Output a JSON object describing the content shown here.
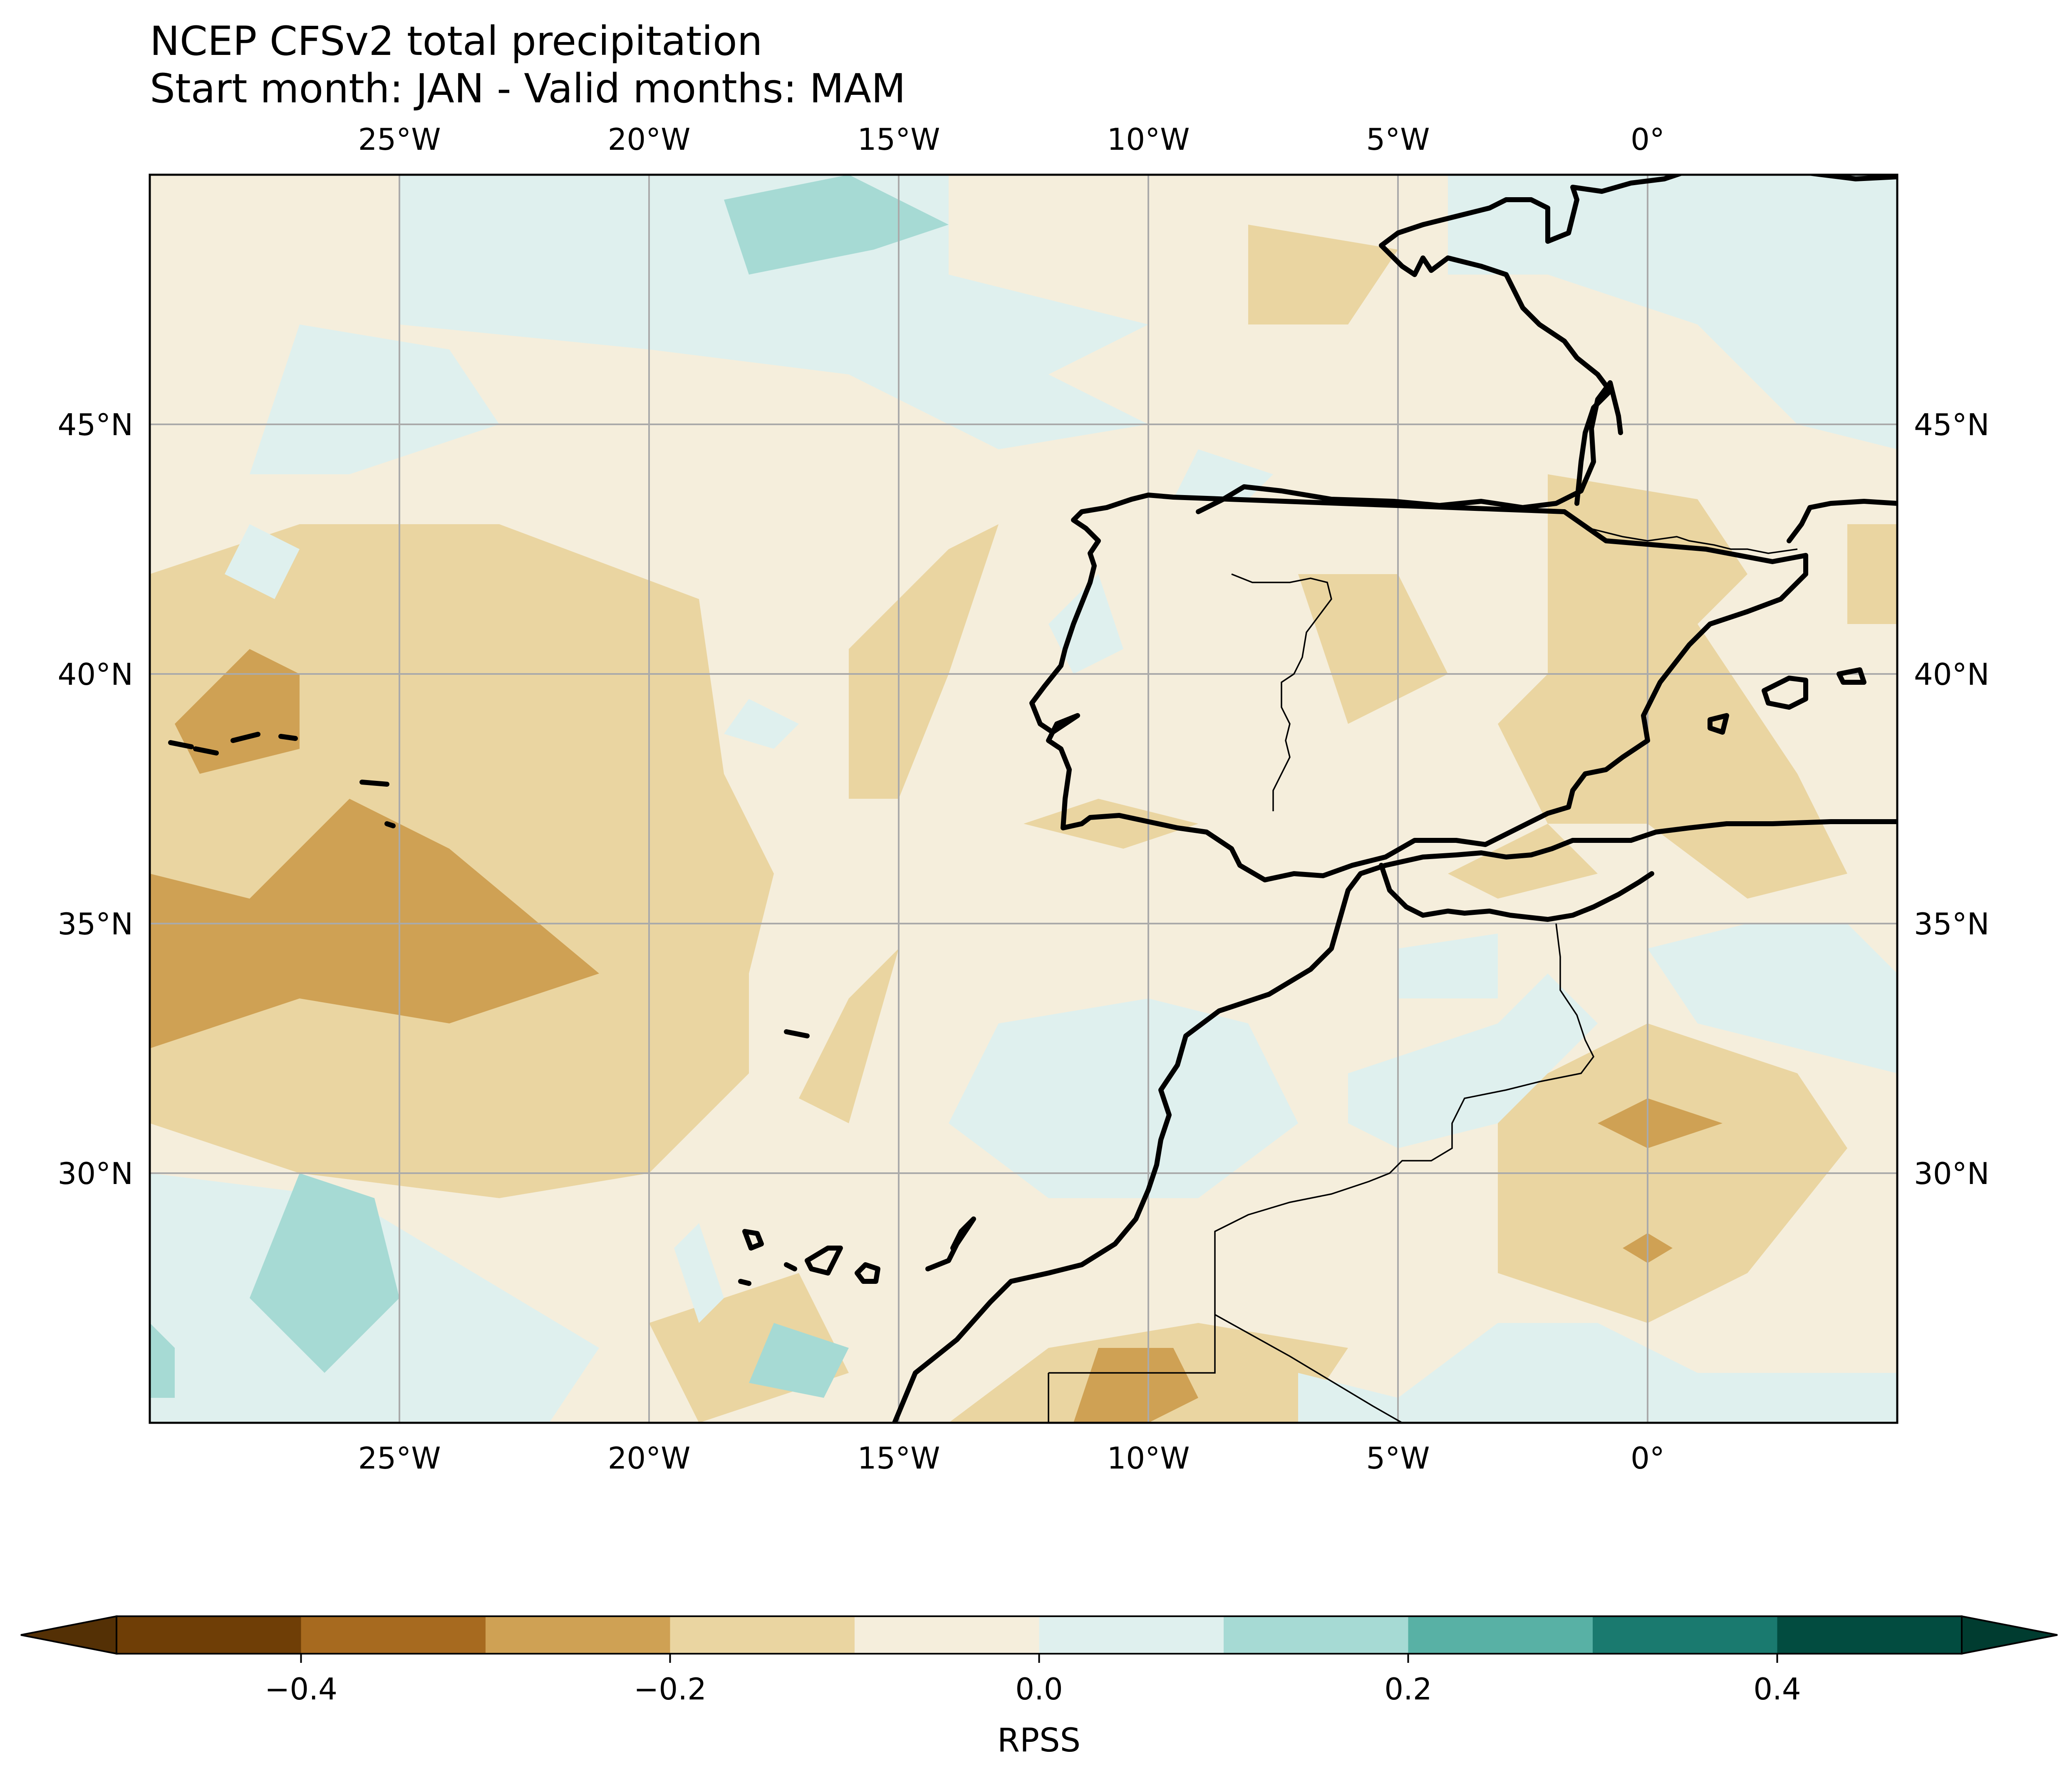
{
  "header": {
    "title_line1": "NCEP CFSv2 total precipitation",
    "title_line2": "Start month: JAN - Valid months: MAM"
  },
  "map": {
    "projection": "PlateCarree",
    "extent": {
      "lon_min": -30,
      "lon_max": 5,
      "lat_min": 25,
      "lat_max": 50
    },
    "lon_ticks": [
      {
        "value": -25,
        "label": "25°W"
      },
      {
        "value": -20,
        "label": "20°W"
      },
      {
        "value": -15,
        "label": "15°W"
      },
      {
        "value": -10,
        "label": "10°W"
      },
      {
        "value": -5,
        "label": "5°W"
      },
      {
        "value": 0,
        "label": "0°"
      }
    ],
    "lat_ticks": [
      {
        "value": 45,
        "label": "45°N"
      },
      {
        "value": 40,
        "label": "40°N"
      },
      {
        "value": 35,
        "label": "35°N"
      },
      {
        "value": 30,
        "label": "30°N"
      }
    ],
    "gridlines": true,
    "gridline_color": "#aaaaaa",
    "coastline_color": "#000000",
    "background_class_color": "#f5eedc",
    "skill_regions": [
      {
        "level": "-0.2 to -0.1",
        "color": "#ead5a1",
        "polygons": [
          [
            [
              -30,
              42
            ],
            [
              -27,
              43
            ],
            [
              -23,
              43
            ],
            [
              -19,
              41.5
            ],
            [
              -18.5,
              38
            ],
            [
              -17.5,
              36
            ],
            [
              -18,
              34
            ],
            [
              -18,
              32
            ],
            [
              -20,
              30
            ],
            [
              -23,
              29.5
            ],
            [
              -27,
              30
            ],
            [
              -30,
              31
            ]
          ],
          [
            [
              -16,
              40.5
            ],
            [
              -14,
              42.5
            ],
            [
              -13,
              43
            ],
            [
              -14,
              40
            ],
            [
              -15,
              37.5
            ],
            [
              -16,
              37.5
            ]
          ],
          [
            [
              -16,
              33.5
            ],
            [
              -15,
              34.5
            ],
            [
              -16,
              31
            ],
            [
              -17,
              31.5
            ]
          ],
          [
            [
              -12.5,
              37
            ],
            [
              -11,
              37.5
            ],
            [
              -9,
              37
            ],
            [
              -10.5,
              36.5
            ]
          ],
          [
            [
              -7,
              42
            ],
            [
              -5,
              42
            ],
            [
              -4,
              40
            ],
            [
              -6,
              39
            ]
          ],
          [
            [
              -2,
              44
            ],
            [
              1,
              43.5
            ],
            [
              2,
              42
            ],
            [
              0,
              40
            ],
            [
              -2,
              40
            ]
          ],
          [
            [
              -3,
              39
            ],
            [
              -1,
              41
            ],
            [
              1,
              41
            ],
            [
              3,
              38
            ],
            [
              4,
              36
            ],
            [
              2,
              35.5
            ],
            [
              0,
              37
            ],
            [
              -2,
              37
            ]
          ],
          [
            [
              -4,
              36
            ],
            [
              -2,
              37
            ],
            [
              -1,
              36
            ],
            [
              -3,
              35.5
            ]
          ],
          [
            [
              -20,
              27
            ],
            [
              -17,
              28
            ],
            [
              -16,
              26
            ],
            [
              -19,
              25
            ]
          ],
          [
            [
              -14,
              25
            ],
            [
              -12,
              26.5
            ],
            [
              -9,
              27
            ],
            [
              -6,
              26.5
            ],
            [
              -7,
              25
            ]
          ],
          [
            [
              -3,
              31.5
            ],
            [
              0,
              33
            ],
            [
              3,
              32
            ],
            [
              4,
              30.5
            ],
            [
              2,
              28
            ],
            [
              0,
              27
            ],
            [
              -3,
              28
            ]
          ],
          [
            [
              -8,
              49
            ],
            [
              -5,
              48.5
            ],
            [
              -6,
              47
            ],
            [
              -8,
              47
            ]
          ],
          [
            [
              -4,
              50
            ],
            [
              -2,
              50
            ],
            [
              -2,
              48
            ],
            [
              -4,
              48
            ]
          ],
          [
            [
              2,
              48
            ],
            [
              4,
              48.5
            ],
            [
              5,
              47
            ],
            [
              3,
              46.5
            ]
          ],
          [
            [
              4,
              43
            ],
            [
              5,
              43
            ],
            [
              5,
              41
            ],
            [
              4,
              41
            ]
          ]
        ]
      },
      {
        "level": "-0.3 to -0.2",
        "color": "#cfa154",
        "polygons": [
          [
            [
              -29.5,
              39
            ],
            [
              -28,
              40.5
            ],
            [
              -27,
              40
            ],
            [
              -27,
              38.5
            ],
            [
              -29,
              38
            ]
          ],
          [
            [
              -30,
              36
            ],
            [
              -28,
              35.5
            ],
            [
              -26,
              37.5
            ],
            [
              -24,
              36.5
            ],
            [
              -21,
              34
            ],
            [
              -24,
              33
            ],
            [
              -27,
              33.5
            ],
            [
              -30,
              32.5
            ]
          ],
          [
            [
              -11.5,
              25
            ],
            [
              -11,
              26.5
            ],
            [
              -9.5,
              26.5
            ],
            [
              -9,
              25.5
            ],
            [
              -10,
              25
            ]
          ],
          [
            [
              -1,
              31
            ],
            [
              0,
              31.5
            ],
            [
              1.5,
              31
            ],
            [
              0,
              30.5
            ]
          ],
          [
            [
              -0.5,
              28.5
            ],
            [
              0,
              28.8
            ],
            [
              0.5,
              28.5
            ],
            [
              0,
              28.2
            ]
          ]
        ]
      },
      {
        "level": "0.0 to 0.1",
        "color": "#dff0ee",
        "polygons": [
          [
            [
              -25,
              50
            ],
            [
              -14,
              50
            ],
            [
              -14,
              48
            ],
            [
              -10,
              47
            ],
            [
              -12,
              46
            ],
            [
              -10,
              45
            ],
            [
              -13,
              44.5
            ],
            [
              -16,
              46
            ],
            [
              -20,
              46.5
            ],
            [
              -25,
              47
            ]
          ],
          [
            [
              -27,
              47
            ],
            [
              -24,
              46.5
            ],
            [
              -23,
              45
            ],
            [
              -26,
              44
            ],
            [
              -28,
              44
            ]
          ],
          [
            [
              -28,
              43
            ],
            [
              -27,
              42.5
            ],
            [
              -27.5,
              41.5
            ],
            [
              -28.5,
              42
            ]
          ],
          [
            [
              -9,
              44.5
            ],
            [
              -7.5,
              44
            ],
            [
              -8,
              43.5
            ],
            [
              -9.5,
              43.5
            ]
          ],
          [
            [
              -4,
              50
            ],
            [
              5,
              50
            ],
            [
              5,
              44.5
            ],
            [
              3,
              45
            ],
            [
              1,
              47
            ],
            [
              -2,
              48
            ],
            [
              -4,
              48
            ]
          ],
          [
            [
              -12,
              41
            ],
            [
              -11,
              42
            ],
            [
              -10.5,
              40.5
            ],
            [
              -11.5,
              40
            ]
          ],
          [
            [
              -18,
              39.5
            ],
            [
              -17,
              39
            ],
            [
              -17.5,
              38.5
            ],
            [
              -18.5,
              38.8
            ]
          ],
          [
            [
              -30,
              30
            ],
            [
              -26,
              29.5
            ],
            [
              -21,
              26.5
            ],
            [
              -22,
              25
            ],
            [
              -30,
              25
            ]
          ],
          [
            [
              -19.5,
              28.5
            ],
            [
              -19,
              29
            ],
            [
              -18.5,
              27.5
            ],
            [
              -19,
              27
            ]
          ],
          [
            [
              -13,
              33
            ],
            [
              -10,
              33.5
            ],
            [
              -8,
              33
            ],
            [
              -7,
              31
            ],
            [
              -9,
              29.5
            ],
            [
              -12,
              29.5
            ],
            [
              -14,
              31
            ]
          ],
          [
            [
              -6,
              32
            ],
            [
              -3,
              33
            ],
            [
              -2,
              34
            ],
            [
              -1,
              33
            ],
            [
              -3,
              31
            ],
            [
              -5,
              30.5
            ],
            [
              -6,
              31
            ]
          ],
          [
            [
              -5,
              34.5
            ],
            [
              -3,
              34.8
            ],
            [
              -3,
              33.5
            ],
            [
              -5,
              33.5
            ]
          ],
          [
            [
              0,
              34.5
            ],
            [
              2,
              35
            ],
            [
              4,
              35
            ],
            [
              5,
              34
            ],
            [
              5,
              32
            ],
            [
              3,
              32.5
            ],
            [
              1,
              33
            ]
          ],
          [
            [
              -7,
              26
            ],
            [
              -5,
              25.5
            ],
            [
              -3,
              27
            ],
            [
              -1,
              27
            ],
            [
              1,
              26
            ],
            [
              5,
              26
            ],
            [
              5,
              25
            ],
            [
              -7,
              25
            ]
          ]
        ]
      },
      {
        "level": "0.1 to 0.2",
        "color": "#a6dad4",
        "polygons": [
          [
            [
              -16,
              50
            ],
            [
              -14,
              49
            ],
            [
              -15.5,
              48.5
            ],
            [
              -18,
              48
            ],
            [
              -18.5,
              49.5
            ]
          ],
          [
            [
              -27,
              30
            ],
            [
              -25.5,
              29.5
            ],
            [
              -25,
              27.5
            ],
            [
              -26.5,
              26
            ],
            [
              -28,
              27.5
            ]
          ],
          [
            [
              -30,
              27
            ],
            [
              -29.5,
              26.5
            ],
            [
              -29.5,
              25.5
            ],
            [
              -30,
              25.5
            ]
          ],
          [
            [
              -17.5,
              27
            ],
            [
              -16,
              26.5
            ],
            [
              -16.5,
              25.5
            ],
            [
              -18,
              25.8
            ]
          ]
        ]
      }
    ],
    "borders_description": "coastlines and national borders of Iberia, France and NW Africa"
  },
  "colorbar": {
    "label": "RPSS",
    "extend": "both",
    "boundaries": [
      -0.5,
      -0.4,
      -0.3,
      -0.2,
      -0.1,
      0.0,
      0.1,
      0.2,
      0.3,
      0.4,
      0.5
    ],
    "colors": [
      "#6f3e06",
      "#a76a1f",
      "#cfa154",
      "#ead5a1",
      "#f5eedc",
      "#dff0ee",
      "#a6dad4",
      "#58b1a5",
      "#1a7a6f",
      "#024c40"
    ],
    "extend_low_color": "#543005",
    "extend_high_color": "#003c30",
    "ticks": [
      {
        "value": -0.4,
        "label": "−0.4"
      },
      {
        "value": -0.2,
        "label": "−0.2"
      },
      {
        "value": 0.0,
        "label": "0.0"
      },
      {
        "value": 0.2,
        "label": "0.2"
      },
      {
        "value": 0.4,
        "label": "0.4"
      }
    ]
  }
}
